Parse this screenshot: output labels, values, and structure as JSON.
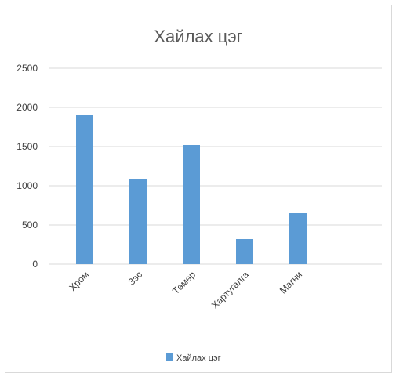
{
  "chart_data": {
    "type": "bar",
    "title": "Хайлах цэг",
    "categories": [
      "Хром",
      "Зэс",
      "Төмөр",
      "Хартугалга",
      "Магни"
    ],
    "series": [
      {
        "name": "Хайлах цэг",
        "values": [
          1900,
          1080,
          1520,
          320,
          650
        ]
      }
    ],
    "ylim": [
      0,
      2500
    ],
    "yticks": [
      0,
      500,
      1000,
      1500,
      2000,
      2500
    ],
    "grid": true,
    "legend": "bottom",
    "bar_color": "#5b9bd5",
    "grid_color": "#d9d9d9"
  }
}
